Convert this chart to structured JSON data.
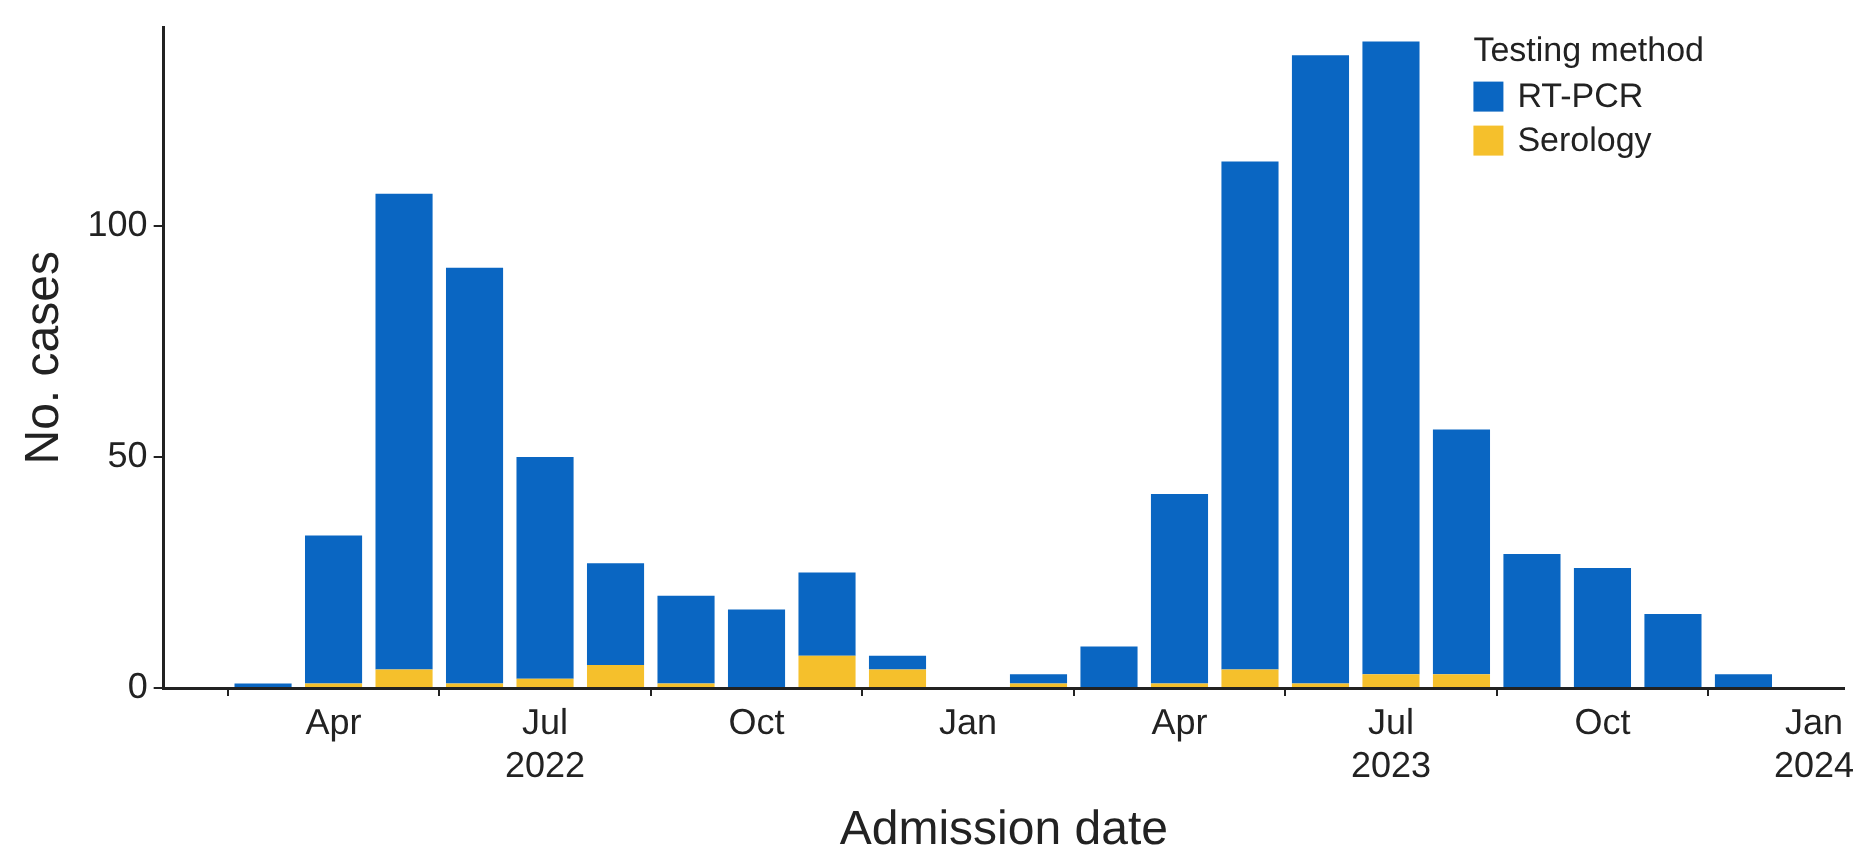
{
  "chart_data": {
    "type": "bar",
    "stacked": true,
    "xlabel": "Admission date",
    "ylabel": "No. cases",
    "legend_title": "Testing method",
    "legend": "top right",
    "grid": false,
    "x": [
      "2022-03",
      "2022-04",
      "2022-05",
      "2022-06",
      "2022-07",
      "2022-08",
      "2022-09",
      "2022-10",
      "2022-11",
      "2022-12",
      "2023-01",
      "2023-02",
      "2023-03",
      "2023-04",
      "2023-05",
      "2023-06",
      "2023-07",
      "2023-08",
      "2023-09",
      "2023-10",
      "2023-11",
      "2023-12"
    ],
    "series": [
      {
        "name": "Serology",
        "color": "#f5c02c",
        "values": [
          0,
          1,
          4,
          1,
          2,
          5,
          1,
          0,
          7,
          4,
          0,
          1,
          0,
          1,
          4,
          1,
          3,
          3,
          0,
          0,
          0,
          0
        ]
      },
      {
        "name": "RT-PCR",
        "color": "#0a66c2",
        "values": [
          1,
          32,
          103,
          90,
          48,
          22,
          19,
          17,
          18,
          3,
          0,
          2,
          9,
          41,
          110,
          136,
          137,
          53,
          29,
          26,
          16,
          3
        ]
      }
    ],
    "xlim": [
      "2022-01-19",
      "2024-01-14"
    ],
    "xticks": [
      {
        "value": "2022-04",
        "label": "Apr"
      },
      {
        "value": "2022-07",
        "label": "Jul\n2022"
      },
      {
        "value": "2022-10",
        "label": "Oct"
      },
      {
        "value": "2023-01",
        "label": "Jan"
      },
      {
        "value": "2023-04",
        "label": "Apr"
      },
      {
        "value": "2023-07",
        "label": "Jul\n2023"
      },
      {
        "value": "2023-10",
        "label": "Oct"
      },
      {
        "value": "2024-01",
        "label": "Jan\n2024"
      }
    ],
    "ylim": [
      0,
      143
    ],
    "yticks": [
      0,
      50,
      100
    ]
  }
}
